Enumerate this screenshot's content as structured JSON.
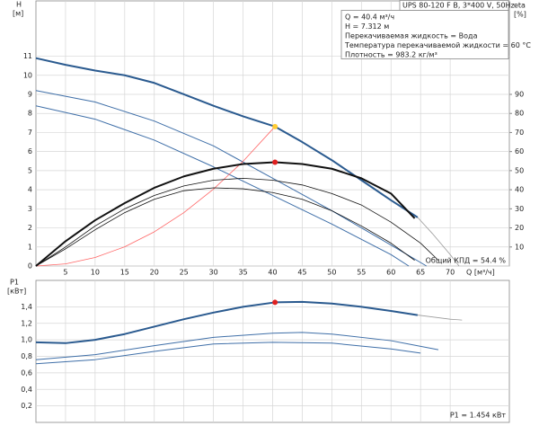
{
  "chart_data": [
    {
      "type": "line",
      "title": "UPS 80-120 F B, 3*400 V, 50Hz",
      "y_label": "H",
      "y_unit": "[м]",
      "y2_label": "eta",
      "y2_unit": "[%]",
      "x_label": "Q [м³/ч]",
      "info": [
        "Q = 40.4 м³/ч",
        "H = 7.312 м",
        "Перекачиваемая жидкость = Вода",
        "Температура перекачиваемой жидкости = 60 °C",
        "Плотность = 983.2 кг/м³"
      ],
      "annotation": "Общий КПД = 54.4 %",
      "xlim": [
        0,
        80
      ],
      "xticks": [
        5,
        10,
        15,
        20,
        25,
        30,
        35,
        40,
        45,
        50,
        55,
        60,
        65,
        70
      ],
      "ylim": [
        0,
        13.9
      ],
      "yticks": [
        0,
        1,
        2,
        3,
        4,
        5,
        6,
        7,
        8,
        9,
        10,
        11
      ],
      "y2lim": [
        0,
        139
      ],
      "y2ticks": [
        10,
        20,
        30,
        40,
        50,
        60,
        70,
        80,
        90
      ],
      "grid": true,
      "series": [
        {
          "color": "#2a5a8f",
          "width": 2,
          "x": [
            0,
            5,
            10,
            15,
            20,
            25,
            30,
            35,
            40.4,
            45,
            50,
            55,
            60,
            64.5
          ],
          "values": [
            10.9,
            10.55,
            10.25,
            10.0,
            9.6,
            9.0,
            8.4,
            7.85,
            7.312,
            6.5,
            5.55,
            4.5,
            3.45,
            2.55
          ]
        },
        {
          "color": "#9a9a9a",
          "width": 0.8,
          "x": [
            64.5,
            67,
            70,
            71.5
          ],
          "values": [
            2.55,
            1.7,
            0.6,
            0
          ]
        },
        {
          "color": "#3f6fa8",
          "width": 1,
          "x": [
            0,
            10,
            20,
            30,
            40,
            50,
            60,
            66
          ],
          "values": [
            9.2,
            8.6,
            7.6,
            6.3,
            4.6,
            2.9,
            1.1,
            0
          ]
        },
        {
          "color": "#3f6fa8",
          "width": 1,
          "x": [
            0,
            10,
            20,
            30,
            40,
            50,
            60,
            63
          ],
          "values": [
            8.4,
            7.7,
            6.6,
            5.2,
            3.7,
            2.2,
            0.6,
            0
          ]
        },
        {
          "color": "#ff6666",
          "width": 0.8,
          "x": [
            0,
            5,
            10,
            15,
            20,
            25,
            30,
            35,
            40.4
          ],
          "values": [
            0,
            0.112,
            0.448,
            1.008,
            1.792,
            2.8,
            4.032,
            5.488,
            7.312
          ]
        },
        {
          "color": "#111111",
          "width": 2,
          "axis": "y2",
          "x": [
            0,
            5,
            10,
            15,
            20,
            25,
            30,
            35,
            40.4,
            45,
            50,
            55,
            60,
            64
          ],
          "values": [
            0,
            13,
            24,
            33,
            41,
            47,
            51,
            53.5,
            54.4,
            53.5,
            51,
            46,
            38,
            25
          ]
        },
        {
          "color": "#111111",
          "width": 0.8,
          "axis": "y2",
          "x": [
            0,
            5,
            10,
            15,
            20,
            25,
            30,
            35,
            40,
            45,
            50,
            55,
            60,
            65,
            68
          ],
          "values": [
            0,
            10,
            21,
            30,
            37,
            42,
            45,
            46,
            45,
            42.5,
            38,
            32,
            23,
            12,
            3
          ]
        },
        {
          "color": "#111111",
          "width": 0.8,
          "axis": "y2",
          "x": [
            0,
            5,
            10,
            15,
            20,
            25,
            30,
            35,
            40,
            45,
            50,
            55,
            60,
            64
          ],
          "values": [
            0,
            9,
            19,
            28,
            35,
            39.5,
            41,
            40.5,
            38.5,
            35,
            29,
            21,
            12,
            3
          ]
        },
        {
          "color": "#ffcc33",
          "marker": true,
          "x": [
            40.4
          ],
          "values": [
            7.312
          ]
        },
        {
          "color": "#e02020",
          "marker": true,
          "axis": "y2",
          "x": [
            40.4
          ],
          "values": [
            54.4
          ]
        }
      ]
    },
    {
      "type": "line",
      "y_label": "P1",
      "y_unit": "[кВт]",
      "annotation": "P1 = 1.454 кВт",
      "xlim": [
        0,
        80
      ],
      "xticks": [
        5,
        10,
        15,
        20,
        25,
        30,
        35,
        40,
        45,
        50,
        55,
        60,
        65,
        70
      ],
      "ylim": [
        0,
        1.72
      ],
      "yticks": [
        {
          "value": 0.2,
          "label": "0,2"
        },
        {
          "value": 0.4,
          "label": "0,4"
        },
        {
          "value": 0.6,
          "label": "0,6"
        },
        {
          "value": 0.8,
          "label": "0,8"
        },
        {
          "value": 1.0,
          "label": "1,0"
        },
        {
          "value": 1.2,
          "label": "1,2"
        },
        {
          "value": 1.4,
          "label": "1,4"
        }
      ],
      "grid": true,
      "series": [
        {
          "color": "#2a5a8f",
          "width": 2,
          "x": [
            0,
            5,
            10,
            15,
            20,
            25,
            30,
            35,
            40.4,
            45,
            50,
            55,
            60,
            64.5
          ],
          "values": [
            0.97,
            0.96,
            1.0,
            1.07,
            1.16,
            1.25,
            1.33,
            1.4,
            1.454,
            1.46,
            1.44,
            1.4,
            1.35,
            1.3
          ]
        },
        {
          "color": "#9a9a9a",
          "width": 0.8,
          "x": [
            64.5,
            70,
            72
          ],
          "values": [
            1.3,
            1.25,
            1.24
          ]
        },
        {
          "color": "#3f6fa8",
          "width": 1,
          "x": [
            0,
            10,
            20,
            30,
            40,
            45,
            50,
            60,
            68
          ],
          "values": [
            0.76,
            0.82,
            0.93,
            1.03,
            1.08,
            1.09,
            1.07,
            0.99,
            0.88
          ]
        },
        {
          "color": "#3f6fa8",
          "width": 1,
          "x": [
            0,
            10,
            20,
            30,
            40,
            50,
            60,
            65
          ],
          "values": [
            0.71,
            0.76,
            0.86,
            0.95,
            0.97,
            0.96,
            0.89,
            0.84
          ]
        },
        {
          "color": "#e02020",
          "marker": true,
          "x": [
            40.4
          ],
          "values": [
            1.454
          ]
        }
      ]
    }
  ]
}
